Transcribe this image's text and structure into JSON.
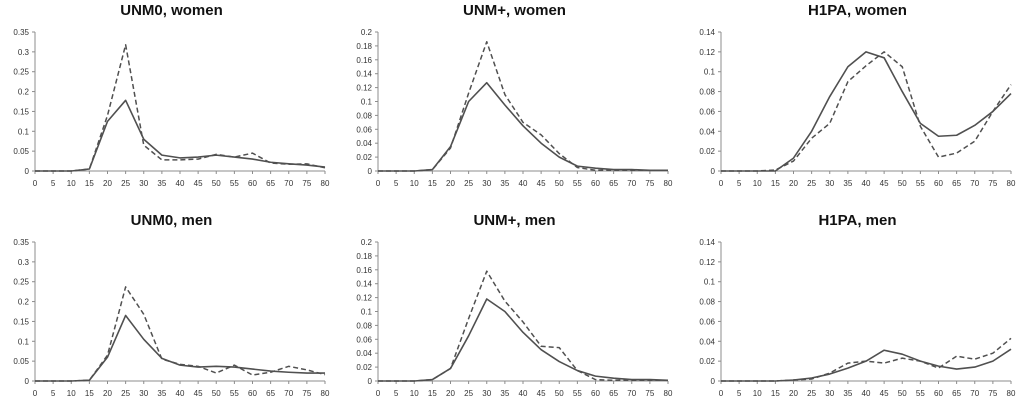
{
  "chart_data": [
    {
      "type": "line",
      "title": "UNM0, women",
      "ylim": [
        0,
        0.35
      ],
      "yticks": [
        "0",
        "0.05",
        "0.1",
        "0.15",
        "0.2",
        "0.25",
        "0.3",
        "0.35"
      ],
      "x": [
        0,
        5,
        10,
        15,
        20,
        25,
        30,
        35,
        40,
        45,
        50,
        55,
        60,
        65,
        70,
        75,
        80
      ],
      "series": [
        {
          "style": "solid",
          "values": [
            0,
            0,
            0,
            0.005,
            0.125,
            0.178,
            0.08,
            0.04,
            0.033,
            0.035,
            0.04,
            0.035,
            0.03,
            0.022,
            0.018,
            0.015,
            0.01
          ]
        },
        {
          "style": "dashed",
          "values": [
            0,
            0,
            0,
            0.005,
            0.14,
            0.318,
            0.065,
            0.028,
            0.028,
            0.03,
            0.042,
            0.035,
            0.045,
            0.02,
            0.017,
            0.018,
            0.008
          ]
        }
      ]
    },
    {
      "type": "line",
      "title": "UNM+, women",
      "ylim": [
        0,
        0.2
      ],
      "yticks": [
        "0",
        "0.02",
        "0.04",
        "0.06",
        "0.08",
        "0.1",
        "0.12",
        "0.14",
        "0.16",
        "0.18",
        "0.2"
      ],
      "x": [
        0,
        5,
        10,
        15,
        20,
        25,
        30,
        35,
        40,
        45,
        50,
        55,
        60,
        65,
        70,
        75,
        80
      ],
      "series": [
        {
          "style": "solid",
          "values": [
            0,
            0,
            0,
            0.002,
            0.035,
            0.1,
            0.127,
            0.095,
            0.065,
            0.04,
            0.02,
            0.007,
            0.004,
            0.002,
            0.002,
            0.001,
            0.001
          ]
        },
        {
          "style": "dashed",
          "values": [
            0,
            0,
            0,
            0.002,
            0.033,
            0.112,
            0.186,
            0.11,
            0.07,
            0.052,
            0.025,
            0.005,
            0.001,
            0.001,
            0.001,
            0.001,
            0.001
          ]
        }
      ]
    },
    {
      "type": "line",
      "title": "H1PA, women",
      "ylim": [
        0,
        0.14
      ],
      "yticks": [
        "0",
        "0.02",
        "0.04",
        "0.06",
        "0.08",
        "0.1",
        "0.12",
        "0.14"
      ],
      "x": [
        0,
        5,
        10,
        15,
        20,
        25,
        30,
        35,
        40,
        45,
        50,
        55,
        60,
        65,
        70,
        75,
        80
      ],
      "series": [
        {
          "style": "solid",
          "values": [
            0,
            0,
            0,
            0,
            0.013,
            0.04,
            0.075,
            0.105,
            0.12,
            0.114,
            0.08,
            0.048,
            0.035,
            0.036,
            0.046,
            0.06,
            0.078
          ]
        },
        {
          "style": "dashed",
          "values": [
            0,
            0,
            0,
            0.001,
            0.01,
            0.033,
            0.048,
            0.09,
            0.106,
            0.12,
            0.105,
            0.045,
            0.014,
            0.018,
            0.03,
            0.06,
            0.087
          ]
        }
      ]
    },
    {
      "type": "line",
      "title": "UNM0, men",
      "ylim": [
        0,
        0.35
      ],
      "yticks": [
        "0",
        "0.05",
        "0.1",
        "0.15",
        "0.2",
        "0.25",
        "0.3",
        "0.35"
      ],
      "x": [
        0,
        5,
        10,
        15,
        20,
        25,
        30,
        35,
        40,
        45,
        50,
        55,
        60,
        65,
        70,
        75,
        80
      ],
      "series": [
        {
          "style": "solid",
          "values": [
            0,
            0,
            0,
            0.002,
            0.06,
            0.165,
            0.105,
            0.057,
            0.04,
            0.035,
            0.037,
            0.035,
            0.03,
            0.025,
            0.022,
            0.02,
            0.02
          ]
        },
        {
          "style": "dashed",
          "values": [
            0,
            0,
            0,
            0.002,
            0.065,
            0.237,
            0.168,
            0.055,
            0.042,
            0.037,
            0.02,
            0.04,
            0.015,
            0.022,
            0.037,
            0.028,
            0.016
          ]
        }
      ]
    },
    {
      "type": "line",
      "title": "UNM+, men",
      "ylim": [
        0,
        0.2
      ],
      "yticks": [
        "0",
        "0.02",
        "0.04",
        "0.06",
        "0.08",
        "0.1",
        "0.12",
        "0.14",
        "0.16",
        "0.18",
        "0.2"
      ],
      "x": [
        0,
        5,
        10,
        15,
        20,
        25,
        30,
        35,
        40,
        45,
        50,
        55,
        60,
        65,
        70,
        75,
        80
      ],
      "series": [
        {
          "style": "solid",
          "values": [
            0,
            0,
            0,
            0.002,
            0.018,
            0.065,
            0.118,
            0.1,
            0.07,
            0.045,
            0.028,
            0.015,
            0.007,
            0.004,
            0.002,
            0.002,
            0.001
          ]
        },
        {
          "style": "dashed",
          "values": [
            0,
            0,
            0,
            0.002,
            0.018,
            0.09,
            0.158,
            0.115,
            0.085,
            0.05,
            0.048,
            0.015,
            0.002,
            0.001,
            0.001,
            0.001,
            0.001
          ]
        }
      ]
    },
    {
      "type": "line",
      "title": "H1PA, men",
      "ylim": [
        0,
        0.14
      ],
      "yticks": [
        "0",
        "0.02",
        "0.04",
        "0.06",
        "0.08",
        "0.1",
        "0.12",
        "0.14"
      ],
      "x": [
        0,
        5,
        10,
        15,
        20,
        25,
        30,
        35,
        40,
        45,
        50,
        55,
        60,
        65,
        70,
        75,
        80
      ],
      "series": [
        {
          "style": "solid",
          "values": [
            0,
            0,
            0,
            0,
            0.001,
            0.003,
            0.007,
            0.013,
            0.02,
            0.031,
            0.027,
            0.02,
            0.015,
            0.012,
            0.014,
            0.02,
            0.032
          ]
        },
        {
          "style": "dashed",
          "values": [
            0,
            0,
            0,
            0,
            0.001,
            0.002,
            0.008,
            0.018,
            0.02,
            0.018,
            0.023,
            0.02,
            0.013,
            0.025,
            0.022,
            0.028,
            0.043
          ]
        }
      ]
    }
  ]
}
